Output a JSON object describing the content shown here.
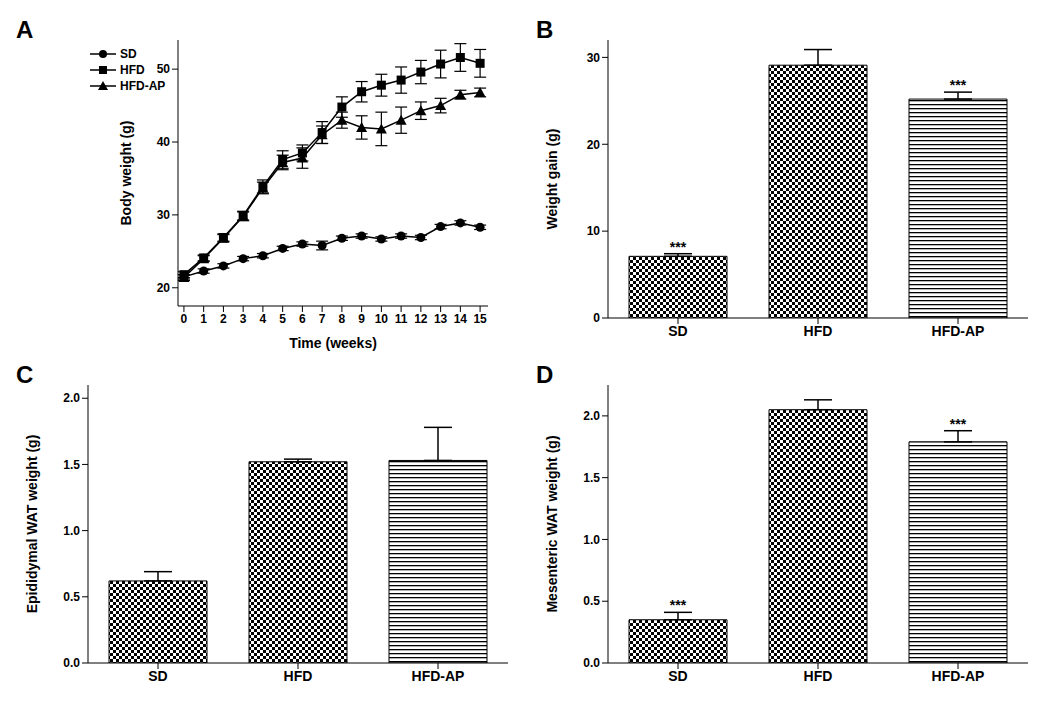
{
  "chart_data": [
    {
      "type": "line",
      "title": "A",
      "x_label": "Time (weeks)",
      "y_label": "Body weight (g)",
      "x": [
        0,
        1,
        2,
        3,
        4,
        5,
        6,
        7,
        8,
        9,
        10,
        11,
        12,
        13,
        14,
        15
      ],
      "xlim": [
        -0.3,
        15.4
      ],
      "xticks": [
        0,
        1,
        2,
        3,
        4,
        5,
        6,
        7,
        8,
        9,
        10,
        11,
        12,
        13,
        14,
        15
      ],
      "ylim": [
        17.5,
        54
      ],
      "yticks": [
        20,
        30,
        40,
        50
      ],
      "legend": "upper left",
      "series": [
        {
          "name": "SD",
          "color": "#000000",
          "marker": "circle",
          "values": [
            21.5,
            22.3,
            23.0,
            24.0,
            24.4,
            25.4,
            26.0,
            25.8,
            26.8,
            27.1,
            26.7,
            27.1,
            26.9,
            28.4,
            28.9,
            28.3
          ],
          "errors": [
            0.3,
            0.3,
            0.3,
            0.3,
            0.3,
            0.3,
            0.3,
            0.6,
            0.3,
            0.3,
            0.3,
            0.3,
            0.3,
            0.3,
            0.3,
            0.3
          ]
        },
        {
          "name": "HFD",
          "color": "#000000",
          "marker": "square",
          "values": [
            21.8,
            24.1,
            26.9,
            29.9,
            33.9,
            37.6,
            38.5,
            41.3,
            44.8,
            46.9,
            47.8,
            48.5,
            49.6,
            50.7,
            51.6,
            50.8
          ],
          "errors": [
            0.4,
            0.4,
            0.5,
            0.6,
            0.9,
            1.2,
            1.1,
            1.5,
            1.4,
            1.4,
            1.5,
            1.8,
            1.6,
            1.9,
            1.9,
            1.9
          ]
        },
        {
          "name": "HFD-AP",
          "color": "#000000",
          "marker": "triangle",
          "values": [
            21.4,
            24.0,
            26.8,
            29.8,
            33.7,
            37.2,
            37.8,
            41.0,
            43.0,
            42.0,
            41.8,
            43.0,
            44.3,
            45.0,
            46.5,
            46.8
          ],
          "errors": [
            0.4,
            0.4,
            0.5,
            0.6,
            0.8,
            1.0,
            1.4,
            1.2,
            1.1,
            1.6,
            2.3,
            1.8,
            1.2,
            1.0,
            0.6,
            0.6
          ]
        }
      ]
    },
    {
      "type": "bar",
      "title": "B",
      "y_label": "Weight gain (g)",
      "color": "#000000",
      "categories": [
        "SD",
        "HFD",
        "HFD-AP"
      ],
      "values": [
        7.1,
        29.1,
        25.2
      ],
      "errors": [
        0.3,
        1.8,
        0.8
      ],
      "annotations": [
        "***",
        null,
        "***"
      ],
      "ylim": [
        0,
        32
      ],
      "yticks": [
        0,
        10,
        20,
        30
      ]
    },
    {
      "type": "bar",
      "title": "C",
      "y_label": "Epididymal WAT weight (g)",
      "color": "#000000",
      "categories": [
        "SD",
        "HFD",
        "HFD-AP"
      ],
      "values": [
        0.62,
        1.52,
        1.53
      ],
      "errors": [
        0.07,
        0.02,
        0.25
      ],
      "annotations": [
        null,
        null,
        null
      ],
      "ylim": [
        0,
        2.1
      ],
      "yticks": [
        {
          "value": 0,
          "label": "0.0"
        },
        0.5,
        {
          "value": 1,
          "label": "1.0"
        },
        1.5,
        {
          "value": 2,
          "label": "2.0"
        }
      ]
    },
    {
      "type": "bar",
      "title": "D",
      "y_label": "Mesenteric WAT weight (g)",
      "color": "#000000",
      "categories": [
        "SD",
        "HFD",
        "HFD-AP"
      ],
      "values": [
        0.35,
        2.05,
        1.79
      ],
      "errors": [
        0.06,
        0.08,
        0.09
      ],
      "annotations": [
        "***",
        null,
        "***"
      ],
      "ylim": [
        0,
        2.25
      ],
      "yticks": [
        {
          "value": 0,
          "label": "0.0"
        },
        0.5,
        {
          "value": 1,
          "label": "1.0"
        },
        1.5,
        {
          "value": 2,
          "label": "2.0"
        }
      ]
    }
  ]
}
